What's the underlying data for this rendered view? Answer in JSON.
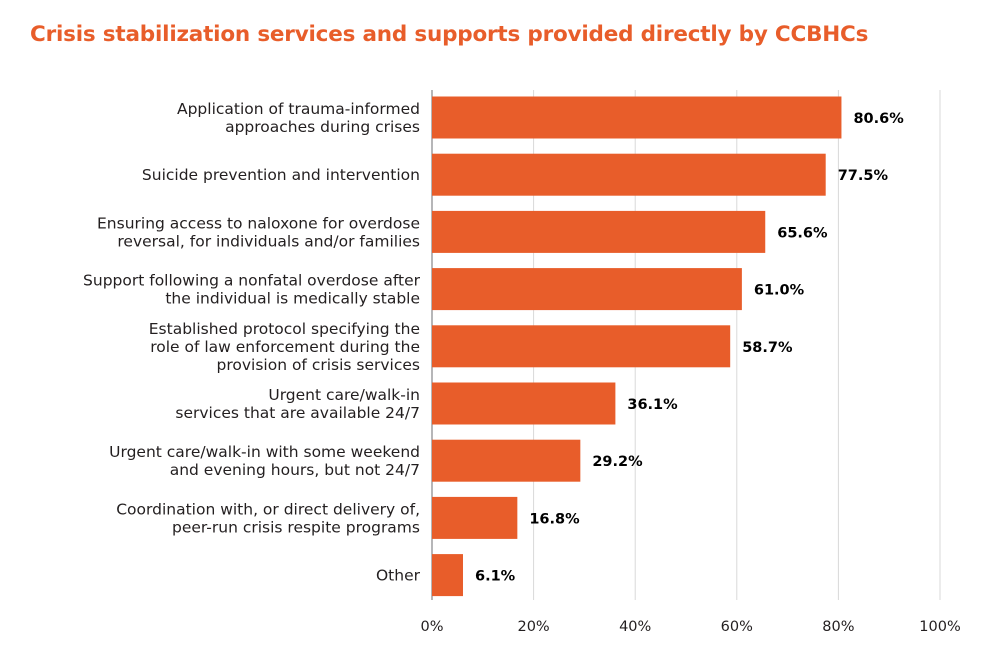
{
  "colors": {
    "title": "#e85d2a",
    "bar": "#e85d2a",
    "grid": "#d9d9d9",
    "axis": "#6d6e71"
  },
  "chart_data": {
    "type": "bar",
    "orientation": "horizontal",
    "title": "Crisis stabilization services and supports provided directly by CCBHCs",
    "xlabel": "",
    "ylabel": "",
    "xlim": [
      0,
      100
    ],
    "grid": true,
    "categories": [
      [
        "Application of trauma-informed",
        "approaches during crises"
      ],
      [
        "Suicide prevention and intervention"
      ],
      [
        "Ensuring access to naloxone for overdose",
        "reversal, for individuals and/or families"
      ],
      [
        "Support following a nonfatal overdose after",
        "the individual is medically stable"
      ],
      [
        "Established protocol specifying the",
        "role of law enforcement during the",
        "provision of crisis services"
      ],
      [
        "Urgent care/walk-in",
        "services that are available 24/7"
      ],
      [
        "Urgent care/walk-in with some weekend",
        "and evening hours, but not 24/7"
      ],
      [
        "Coordination with, or direct delivery of,",
        "peer-run crisis respite programs"
      ],
      [
        "Other"
      ]
    ],
    "values": [
      80.6,
      77.5,
      65.6,
      61.0,
      58.7,
      36.1,
      29.2,
      16.8,
      6.1
    ],
    "value_labels": [
      "80.6%",
      "77.5%",
      "65.6%",
      "61.0%",
      "58.7%",
      "36.1%",
      "29.2%",
      "16.8%",
      "6.1%"
    ],
    "ticks": [
      0,
      20,
      40,
      60,
      80,
      100
    ],
    "tick_labels": [
      "0%",
      "20%",
      "40%",
      "60%",
      "80%",
      "100%"
    ]
  }
}
